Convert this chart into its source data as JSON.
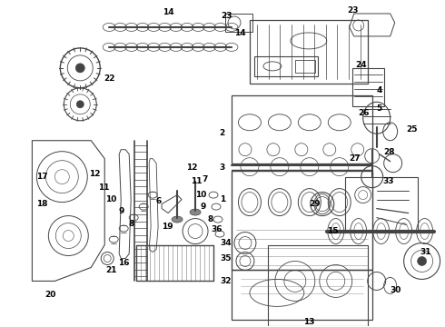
{
  "background_color": "#ffffff",
  "line_color": "#444444",
  "text_color": "#000000",
  "figure_width": 4.9,
  "figure_height": 3.6,
  "dpi": 100
}
